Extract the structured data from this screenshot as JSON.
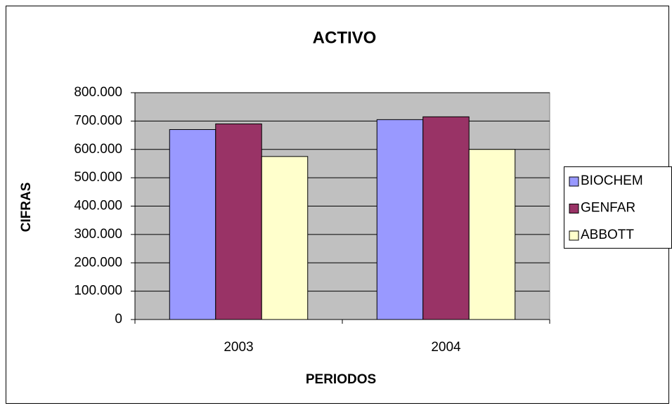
{
  "chart_data": {
    "type": "bar",
    "title": "ACTIVO",
    "x_label": "PERIODOS",
    "y_label": "CIFRAS",
    "categories": [
      "2003",
      "2004"
    ],
    "series": [
      {
        "name": "BIOCHEM",
        "color": "#9999ff",
        "values": [
          670000,
          705000
        ]
      },
      {
        "name": "GENFAR",
        "color": "#993366",
        "values": [
          690000,
          715000
        ]
      },
      {
        "name": "ABBOTT",
        "color": "#ffffcc",
        "values": [
          575000,
          600000
        ]
      }
    ],
    "ylim": [
      0,
      800000
    ],
    "yticks": [
      0,
      {
        "value": 100000,
        "label": "100.000"
      },
      {
        "value": 200000,
        "label": "200.000"
      },
      {
        "value": 300000,
        "label": "300.000"
      },
      {
        "value": 400000,
        "label": "400.000"
      },
      {
        "value": 500000,
        "label": "500.000"
      },
      {
        "value": 600000,
        "label": "600.000"
      },
      {
        "value": 700000,
        "label": "700.000"
      },
      {
        "value": 800000,
        "label": "800.000"
      }
    ],
    "grid": true,
    "legend": "right",
    "plot_background": "#c0c0c0"
  }
}
